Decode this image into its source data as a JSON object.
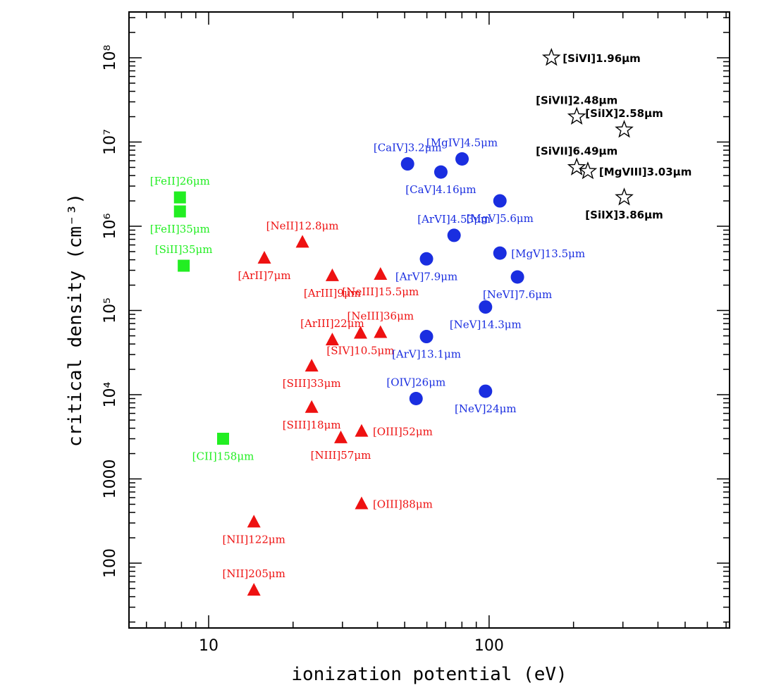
{
  "chart_data": {
    "type": "scatter",
    "xlabel": "ionization potential (eV)",
    "ylabel": "critical density (cm⁻³)",
    "xscale": "log",
    "yscale": "log",
    "xlim": [
      5.2,
      720
    ],
    "ylim": [
      17,
      350000000
    ],
    "grid": false,
    "legend": "none",
    "x_major_ticks": [
      {
        "value": 10,
        "label": "10"
      },
      {
        "value": 100,
        "label": "100"
      }
    ],
    "y_major_ticks": [
      {
        "value": 100,
        "label": "100"
      },
      {
        "value": 1000,
        "label": "1000"
      },
      {
        "value": 10000,
        "label": "10⁴"
      },
      {
        "value": 100000,
        "label": "10⁵"
      },
      {
        "value": 1000000,
        "label": "10⁶"
      },
      {
        "value": 10000000,
        "label": "10⁷"
      },
      {
        "value": 100000000,
        "label": "10⁸"
      }
    ],
    "series": [
      {
        "marker": "square",
        "color": "#22ee22",
        "label_font": "serif",
        "points": [
          {
            "x": 7.9,
            "y": 2200000,
            "label": "[FeII]26μm",
            "anchor": "above"
          },
          {
            "x": 7.9,
            "y": 1500000,
            "label": "[FeII]35μm",
            "anchor": "below"
          },
          {
            "x": 8.15,
            "y": 340000,
            "label": "[SiII]35μm",
            "anchor": "above"
          },
          {
            "x": 11.26,
            "y": 3000,
            "label": "[CII]158μm",
            "anchor": "below"
          }
        ]
      },
      {
        "marker": "triangle",
        "color": "#ee1111",
        "label_font": "serif",
        "points": [
          {
            "x": 21.6,
            "y": 650000,
            "label": "[NeII]12.8μm",
            "anchor": "above"
          },
          {
            "x": 15.8,
            "y": 420000,
            "label": "[ArII]7μm",
            "anchor": "below"
          },
          {
            "x": 27.6,
            "y": 260000,
            "label": "[ArIII]9μm",
            "anchor": "below"
          },
          {
            "x": 41.0,
            "y": 270000,
            "label": "[NeIII]15.5μm",
            "anchor": "below"
          },
          {
            "x": 27.6,
            "y": 45000,
            "label": "[ArIII]22μm",
            "anchor": "above"
          },
          {
            "x": 34.8,
            "y": 54000,
            "label": "[SIV]10.5μm",
            "anchor": "below"
          },
          {
            "x": 41.0,
            "y": 55000,
            "label": "[NeIII]36μm",
            "anchor": "above"
          },
          {
            "x": 23.3,
            "y": 22000,
            "label": "[SIII]33μm",
            "anchor": "below"
          },
          {
            "x": 23.3,
            "y": 7100,
            "label": "[SIII]18μm",
            "anchor": "below"
          },
          {
            "x": 29.6,
            "y": 3100,
            "label": "[NIII]57μm",
            "anchor": "below"
          },
          {
            "x": 35.1,
            "y": 3700,
            "label": "[OIII]52μm",
            "anchor": "right"
          },
          {
            "x": 35.1,
            "y": 510,
            "label": "[OIII]88μm",
            "anchor": "right"
          },
          {
            "x": 14.5,
            "y": 310,
            "label": "[NII]122μm",
            "anchor": "below"
          },
          {
            "x": 14.5,
            "y": 48,
            "label": "[NII]205μm",
            "anchor": "above"
          }
        ]
      },
      {
        "marker": "circle",
        "color": "#1a2ee0",
        "label_font": "serif",
        "points": [
          {
            "x": 51.2,
            "y": 5500000,
            "label": "[CaIV]3.2μm",
            "anchor": "above"
          },
          {
            "x": 67.3,
            "y": 4400000,
            "label": "[CaV]4.16μm",
            "anchor": "below"
          },
          {
            "x": 80.1,
            "y": 6300000,
            "label": "[MgIV]4.5μm",
            "anchor": "above"
          },
          {
            "x": 109.3,
            "y": 2000000,
            "label": "[MgV]5.6μm",
            "anchor": "below"
          },
          {
            "x": 75.0,
            "y": 780000,
            "label": "[ArVI]4.53μm",
            "anchor": "above"
          },
          {
            "x": 59.8,
            "y": 410000,
            "label": "[ArV]7.9μm",
            "anchor": "below"
          },
          {
            "x": 109.3,
            "y": 480000,
            "label": "[MgV]13.5μm",
            "anchor": "right"
          },
          {
            "x": 126.2,
            "y": 250000,
            "label": "[NeVI]7.6μm",
            "anchor": "below"
          },
          {
            "x": 97.1,
            "y": 110000,
            "label": "[NeV]14.3μm",
            "anchor": "below"
          },
          {
            "x": 59.8,
            "y": 49000,
            "label": "[ArV]13.1μm",
            "anchor": "below"
          },
          {
            "x": 54.9,
            "y": 9000,
            "label": "[OIV]26μm",
            "anchor": "above"
          },
          {
            "x": 97.1,
            "y": 11000,
            "label": "[NeV]24μm",
            "anchor": "below"
          }
        ]
      },
      {
        "marker": "star",
        "color": "#000000",
        "label_font": "bold",
        "points": [
          {
            "x": 166.8,
            "y": 100000000,
            "label": "[SiVI]1.96μm",
            "anchor": "right"
          },
          {
            "x": 205.3,
            "y": 20000000,
            "label": "[SiVII]2.48μm",
            "anchor": "above"
          },
          {
            "x": 303.2,
            "y": 14000000,
            "label": "[SiIX]2.58μm",
            "anchor": "above"
          },
          {
            "x": 205.3,
            "y": 5000000,
            "label": "[SiVII]6.49μm",
            "anchor": "above"
          },
          {
            "x": 224.9,
            "y": 4500000,
            "label": "[MgVIII]3.03μm",
            "anchor": "right"
          },
          {
            "x": 303.2,
            "y": 2200000,
            "label": "[SiIX]3.86μm",
            "anchor": "below"
          }
        ]
      }
    ]
  }
}
